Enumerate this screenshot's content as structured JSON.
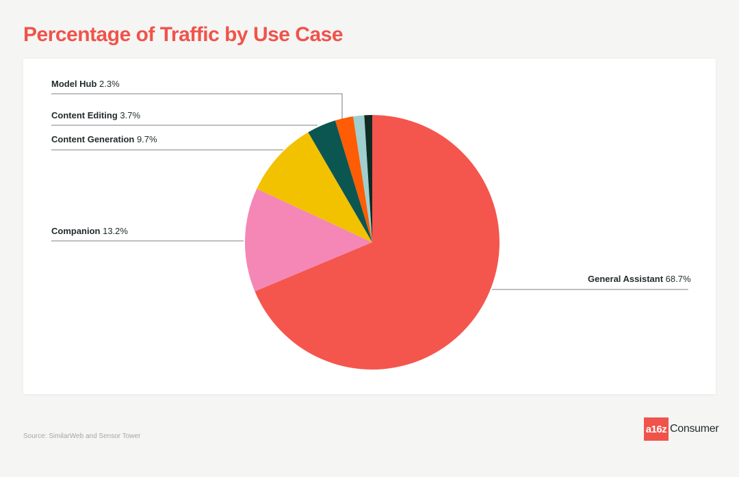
{
  "title": "Percentage of Traffic by Use Case",
  "source": "Source: SimilarWeb and Sensor Tower",
  "logo": {
    "mark": "a16z",
    "text": "Consumer"
  },
  "colors": {
    "title": "#f0534a",
    "general_assistant": "#f4564d",
    "companion": "#f487b6",
    "content_generation": "#f2c200",
    "content_editing": "#0c5651",
    "model_hub": "#fe5c05",
    "small_1": "#9fcfcf",
    "small_2": "#0f2b24"
  },
  "chart_data": {
    "type": "pie",
    "title": "Percentage of Traffic by Use Case",
    "start_angle_deg": 0,
    "direction": "clockwise",
    "slices": [
      {
        "name": "General Assistant",
        "value": 68.7,
        "label": "68.7%",
        "color": "#f4564d",
        "labeled": true
      },
      {
        "name": "Companion",
        "value": 13.2,
        "label": "13.2%",
        "color": "#f487b6",
        "labeled": true
      },
      {
        "name": "Content Generation",
        "value": 9.7,
        "label": "9.7%",
        "color": "#f2c200",
        "labeled": true
      },
      {
        "name": "Content Editing",
        "value": 3.7,
        "label": "3.7%",
        "color": "#0c5651",
        "labeled": true
      },
      {
        "name": "Model Hub",
        "value": 2.3,
        "label": "2.3%",
        "color": "#fe5c05",
        "labeled": true
      },
      {
        "name": "",
        "value": 1.4,
        "label": "",
        "color": "#9fcfcf",
        "labeled": false
      },
      {
        "name": "",
        "value": 1.0,
        "label": "",
        "color": "#0f2b24",
        "labeled": false
      }
    ]
  }
}
